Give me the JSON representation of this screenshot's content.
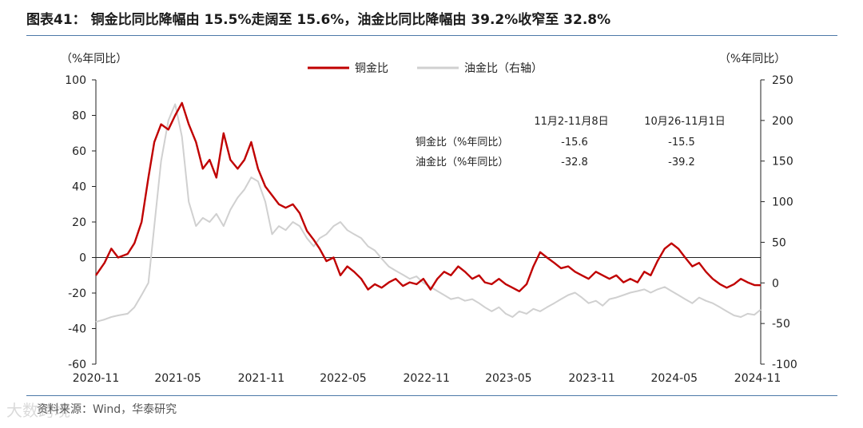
{
  "title": "图表41：  铜金比同比降幅由 15.5%走阔至 15.6%，油金比同比降幅由 39.2%收窄至 32.8%",
  "source": "资料来源：Wind，华泰研究",
  "watermark": "大数跨境",
  "colors": {
    "series1": "#c00000",
    "series2": "#d0d0d0",
    "rule": "#4d79a8",
    "axis": "#222222"
  },
  "chart_data": {
    "type": "line",
    "left_unit": "（%年同比）",
    "right_unit": "（%年同比）",
    "left_ylim": [
      -60,
      100
    ],
    "right_ylim": [
      -100,
      250
    ],
    "left_ticks": [
      "100",
      "80",
      "60",
      "40",
      "20",
      "0",
      "-20",
      "-40",
      "-60"
    ],
    "right_ticks": [
      "250",
      "200",
      "150",
      "100",
      "50",
      "0",
      "-50",
      "-100"
    ],
    "x_ticks": [
      "2020-11",
      "2021-05",
      "2021-11",
      "2022-05",
      "2022-11",
      "2023-05",
      "2023-11",
      "2024-05",
      "2024-11"
    ],
    "x_range": [
      "2020-11-01",
      "2024-11-08"
    ],
    "series": [
      {
        "name": "铜金比",
        "axis": "left",
        "points": [
          [
            "2020-11-01",
            -10
          ],
          [
            "2020-11-20",
            -3
          ],
          [
            "2020-12-05",
            5
          ],
          [
            "2020-12-20",
            0
          ],
          [
            "2021-01-10",
            2
          ],
          [
            "2021-01-25",
            8
          ],
          [
            "2021-02-10",
            20
          ],
          [
            "2021-02-25",
            45
          ],
          [
            "2021-03-10",
            65
          ],
          [
            "2021-03-25",
            75
          ],
          [
            "2021-04-10",
            72
          ],
          [
            "2021-04-25",
            80
          ],
          [
            "2021-05-10",
            87
          ],
          [
            "2021-05-25",
            75
          ],
          [
            "2021-06-10",
            65
          ],
          [
            "2021-06-25",
            50
          ],
          [
            "2021-07-10",
            55
          ],
          [
            "2021-07-25",
            45
          ],
          [
            "2021-08-10",
            70
          ],
          [
            "2021-08-25",
            55
          ],
          [
            "2021-09-10",
            50
          ],
          [
            "2021-09-25",
            55
          ],
          [
            "2021-10-10",
            65
          ],
          [
            "2021-10-25",
            50
          ],
          [
            "2021-11-10",
            40
          ],
          [
            "2021-11-25",
            35
          ],
          [
            "2021-12-10",
            30
          ],
          [
            "2021-12-25",
            28
          ],
          [
            "2022-01-10",
            30
          ],
          [
            "2022-01-25",
            25
          ],
          [
            "2022-02-10",
            15
          ],
          [
            "2022-02-25",
            10
          ],
          [
            "2022-03-10",
            5
          ],
          [
            "2022-03-25",
            -2
          ],
          [
            "2022-04-10",
            0
          ],
          [
            "2022-04-25",
            -10
          ],
          [
            "2022-05-10",
            -5
          ],
          [
            "2022-05-25",
            -8
          ],
          [
            "2022-06-10",
            -12
          ],
          [
            "2022-06-25",
            -18
          ],
          [
            "2022-07-10",
            -15
          ],
          [
            "2022-07-25",
            -17
          ],
          [
            "2022-08-10",
            -14
          ],
          [
            "2022-08-25",
            -12
          ],
          [
            "2022-09-10",
            -16
          ],
          [
            "2022-09-25",
            -14
          ],
          [
            "2022-10-10",
            -15
          ],
          [
            "2022-10-25",
            -12
          ],
          [
            "2022-11-10",
            -18
          ],
          [
            "2022-11-25",
            -12
          ],
          [
            "2022-12-10",
            -8
          ],
          [
            "2022-12-25",
            -10
          ],
          [
            "2023-01-10",
            -5
          ],
          [
            "2023-01-25",
            -8
          ],
          [
            "2023-02-10",
            -12
          ],
          [
            "2023-02-25",
            -10
          ],
          [
            "2023-03-10",
            -14
          ],
          [
            "2023-03-25",
            -15
          ],
          [
            "2023-04-10",
            -12
          ],
          [
            "2023-04-25",
            -15
          ],
          [
            "2023-05-10",
            -17
          ],
          [
            "2023-05-25",
            -19
          ],
          [
            "2023-06-10",
            -15
          ],
          [
            "2023-06-25",
            -5
          ],
          [
            "2023-07-10",
            3
          ],
          [
            "2023-07-25",
            0
          ],
          [
            "2023-08-10",
            -3
          ],
          [
            "2023-08-25",
            -6
          ],
          [
            "2023-09-10",
            -5
          ],
          [
            "2023-09-25",
            -8
          ],
          [
            "2023-10-10",
            -10
          ],
          [
            "2023-10-25",
            -12
          ],
          [
            "2023-11-10",
            -8
          ],
          [
            "2023-11-25",
            -10
          ],
          [
            "2023-12-10",
            -12
          ],
          [
            "2023-12-25",
            -10
          ],
          [
            "2024-01-10",
            -14
          ],
          [
            "2024-01-25",
            -12
          ],
          [
            "2024-02-10",
            -14
          ],
          [
            "2024-02-25",
            -8
          ],
          [
            "2024-03-10",
            -10
          ],
          [
            "2024-03-25",
            -2
          ],
          [
            "2024-04-10",
            5
          ],
          [
            "2024-04-25",
            8
          ],
          [
            "2024-05-10",
            5
          ],
          [
            "2024-05-25",
            0
          ],
          [
            "2024-06-10",
            -5
          ],
          [
            "2024-06-25",
            -3
          ],
          [
            "2024-07-10",
            -8
          ],
          [
            "2024-07-25",
            -12
          ],
          [
            "2024-08-10",
            -15
          ],
          [
            "2024-08-25",
            -17
          ],
          [
            "2024-09-10",
            -15
          ],
          [
            "2024-09-25",
            -12
          ],
          [
            "2024-10-10",
            -14
          ],
          [
            "2024-10-25",
            -15.5
          ],
          [
            "2024-11-08",
            -15.6
          ]
        ]
      },
      {
        "name": "油金比（右轴）",
        "axis": "right",
        "points": [
          [
            "2020-11-01",
            -48
          ],
          [
            "2020-11-20",
            -45
          ],
          [
            "2020-12-05",
            -42
          ],
          [
            "2020-12-20",
            -40
          ],
          [
            "2021-01-10",
            -38
          ],
          [
            "2021-01-25",
            -30
          ],
          [
            "2021-02-10",
            -15
          ],
          [
            "2021-02-25",
            0
          ],
          [
            "2021-03-10",
            70
          ],
          [
            "2021-03-25",
            150
          ],
          [
            "2021-04-10",
            200
          ],
          [
            "2021-04-25",
            220
          ],
          [
            "2021-05-10",
            180
          ],
          [
            "2021-05-25",
            100
          ],
          [
            "2021-06-10",
            70
          ],
          [
            "2021-06-25",
            80
          ],
          [
            "2021-07-10",
            75
          ],
          [
            "2021-07-25",
            85
          ],
          [
            "2021-08-10",
            70
          ],
          [
            "2021-08-25",
            90
          ],
          [
            "2021-09-10",
            105
          ],
          [
            "2021-09-25",
            115
          ],
          [
            "2021-10-10",
            130
          ],
          [
            "2021-10-25",
            125
          ],
          [
            "2021-11-10",
            100
          ],
          [
            "2021-11-25",
            60
          ],
          [
            "2021-12-10",
            70
          ],
          [
            "2021-12-25",
            65
          ],
          [
            "2022-01-10",
            75
          ],
          [
            "2022-01-25",
            70
          ],
          [
            "2022-02-10",
            55
          ],
          [
            "2022-02-25",
            45
          ],
          [
            "2022-03-10",
            55
          ],
          [
            "2022-03-25",
            60
          ],
          [
            "2022-04-10",
            70
          ],
          [
            "2022-04-25",
            75
          ],
          [
            "2022-05-10",
            65
          ],
          [
            "2022-05-25",
            60
          ],
          [
            "2022-06-10",
            55
          ],
          [
            "2022-06-25",
            45
          ],
          [
            "2022-07-10",
            40
          ],
          [
            "2022-07-25",
            30
          ],
          [
            "2022-08-10",
            20
          ],
          [
            "2022-08-25",
            15
          ],
          [
            "2022-09-10",
            10
          ],
          [
            "2022-09-25",
            5
          ],
          [
            "2022-10-10",
            8
          ],
          [
            "2022-10-25",
            0
          ],
          [
            "2022-11-10",
            -5
          ],
          [
            "2022-11-25",
            -10
          ],
          [
            "2022-12-10",
            -15
          ],
          [
            "2022-12-25",
            -20
          ],
          [
            "2023-01-10",
            -18
          ],
          [
            "2023-01-25",
            -22
          ],
          [
            "2023-02-10",
            -20
          ],
          [
            "2023-02-25",
            -25
          ],
          [
            "2023-03-10",
            -30
          ],
          [
            "2023-03-25",
            -35
          ],
          [
            "2023-04-10",
            -30
          ],
          [
            "2023-04-25",
            -38
          ],
          [
            "2023-05-10",
            -42
          ],
          [
            "2023-05-25",
            -35
          ],
          [
            "2023-06-10",
            -38
          ],
          [
            "2023-06-25",
            -32
          ],
          [
            "2023-07-10",
            -35
          ],
          [
            "2023-07-25",
            -30
          ],
          [
            "2023-08-10",
            -25
          ],
          [
            "2023-08-25",
            -20
          ],
          [
            "2023-09-10",
            -15
          ],
          [
            "2023-09-25",
            -12
          ],
          [
            "2023-10-10",
            -18
          ],
          [
            "2023-10-25",
            -25
          ],
          [
            "2023-11-10",
            -22
          ],
          [
            "2023-11-25",
            -28
          ],
          [
            "2023-12-10",
            -20
          ],
          [
            "2023-12-25",
            -18
          ],
          [
            "2024-01-10",
            -15
          ],
          [
            "2024-01-25",
            -12
          ],
          [
            "2024-02-10",
            -10
          ],
          [
            "2024-02-25",
            -8
          ],
          [
            "2024-03-10",
            -12
          ],
          [
            "2024-03-25",
            -8
          ],
          [
            "2024-04-10",
            -5
          ],
          [
            "2024-04-25",
            -10
          ],
          [
            "2024-05-10",
            -15
          ],
          [
            "2024-05-25",
            -20
          ],
          [
            "2024-06-10",
            -25
          ],
          [
            "2024-06-25",
            -18
          ],
          [
            "2024-07-10",
            -22
          ],
          [
            "2024-07-25",
            -25
          ],
          [
            "2024-08-10",
            -30
          ],
          [
            "2024-08-25",
            -35
          ],
          [
            "2024-09-10",
            -40
          ],
          [
            "2024-09-25",
            -42
          ],
          [
            "2024-10-10",
            -38
          ],
          [
            "2024-10-25",
            -39.2
          ],
          [
            "2024-11-08",
            -32.8
          ]
        ]
      }
    ],
    "table": {
      "headers": [
        "11月2-11月8日",
        "10月26-11月1日"
      ],
      "rows": [
        {
          "label": "铜金比（%年同比）",
          "values": [
            "-15.6",
            "-15.5"
          ]
        },
        {
          "label": "油金比（%年同比）",
          "values": [
            "-32.8",
            "-39.2"
          ]
        }
      ]
    },
    "legend_position": "top-center"
  }
}
